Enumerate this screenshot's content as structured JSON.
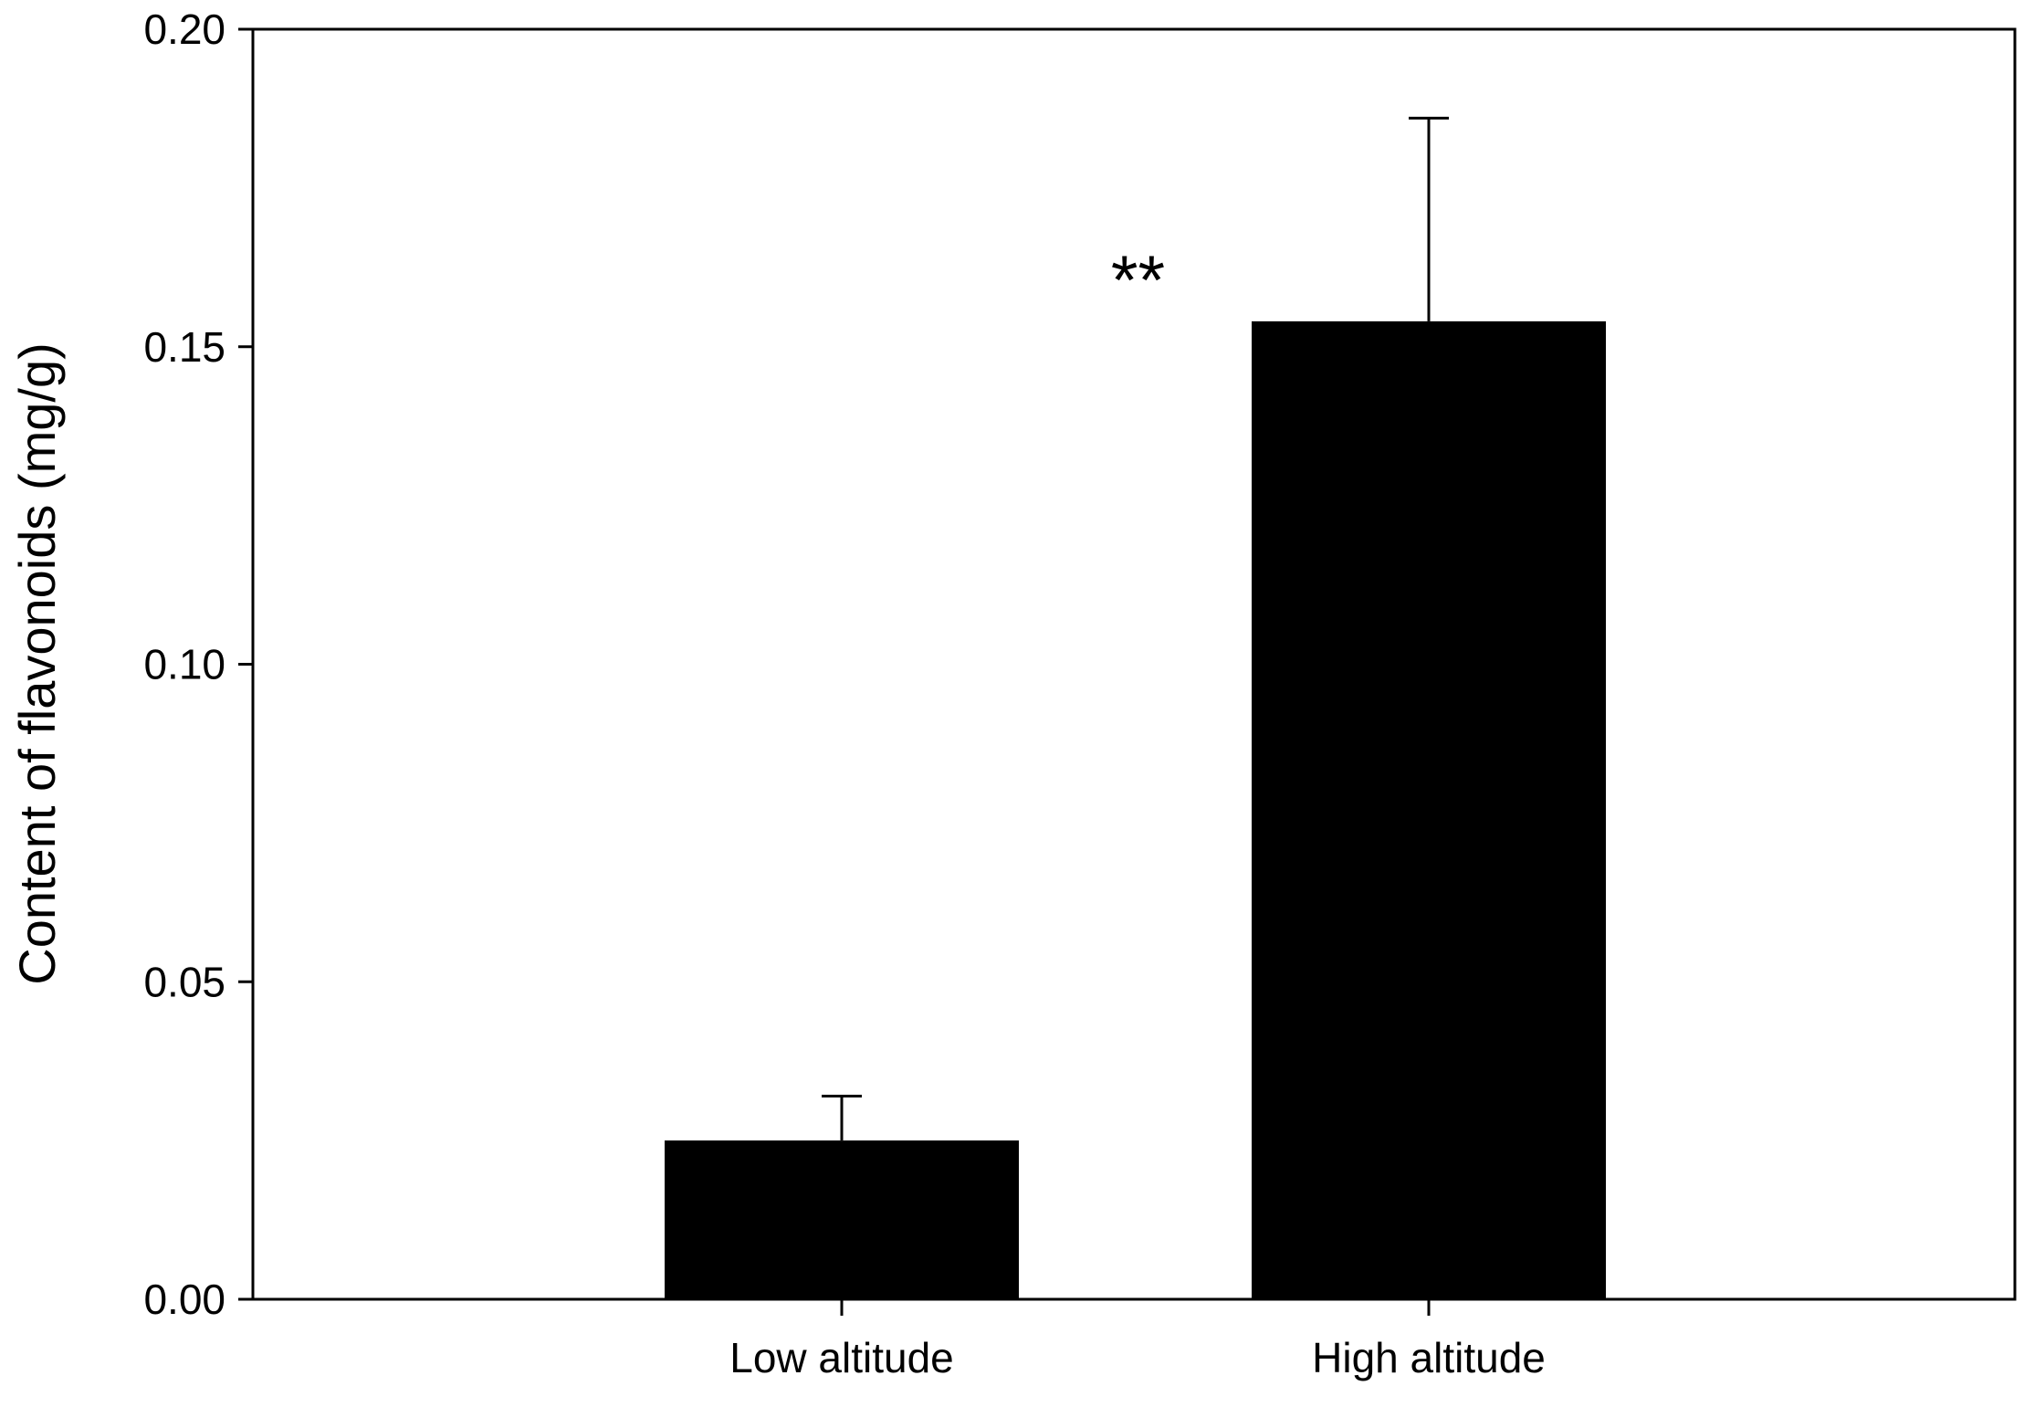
{
  "chart_data": {
    "type": "bar",
    "title": "",
    "xlabel": "",
    "ylabel": "Content of flavonoids (mg/g)",
    "ylim": [
      0,
      0.2
    ],
    "yticks": [
      "0.00",
      "0.05",
      "0.10",
      "0.15",
      "0.20"
    ],
    "ytick_values": [
      0,
      0.05,
      0.1,
      0.15,
      0.2
    ],
    "categories": [
      "Low altitude",
      "High altitude"
    ],
    "values": [
      0.025,
      0.154
    ],
    "error_upper": [
      0.007,
      0.032
    ],
    "bar_color": "#000000",
    "grid": false,
    "legend": "none",
    "annotations": [
      {
        "text": "**",
        "x_between": [
          "Low altitude",
          "High altitude"
        ],
        "y": 0.161
      }
    ]
  }
}
